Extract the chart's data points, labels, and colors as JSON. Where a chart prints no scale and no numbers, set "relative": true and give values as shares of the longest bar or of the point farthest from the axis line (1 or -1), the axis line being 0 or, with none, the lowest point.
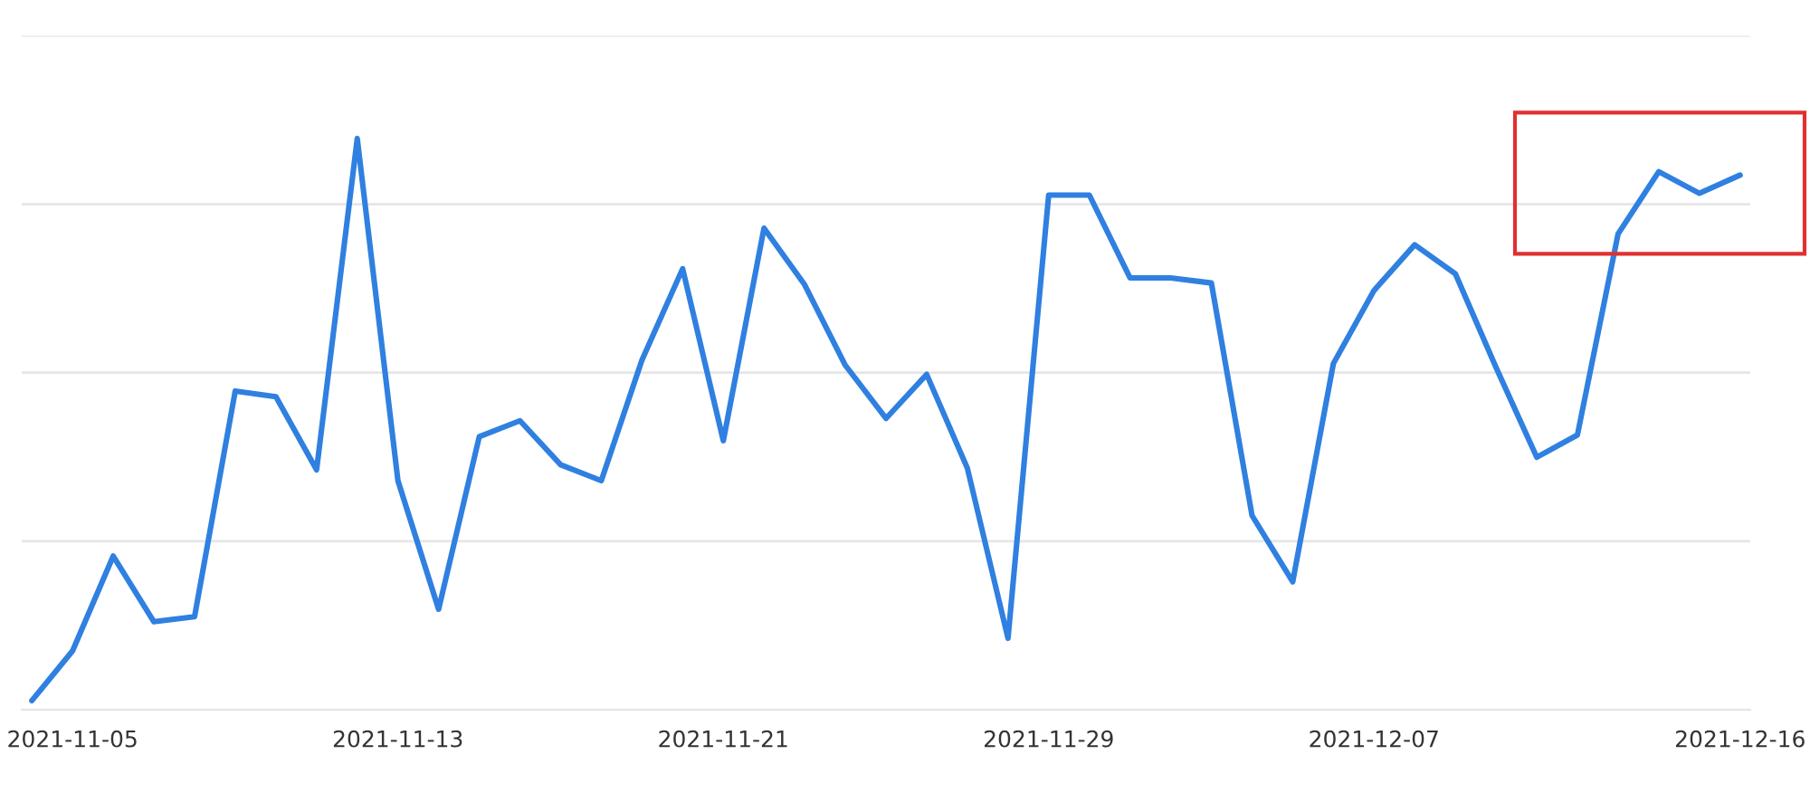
{
  "chart_data": {
    "type": "line",
    "relative": true,
    "grid": "y",
    "marker": "none",
    "line_style": "solid",
    "categories": [
      null,
      "2021-11-05",
      null,
      null,
      null,
      null,
      null,
      null,
      null,
      "2021-11-13",
      null,
      null,
      null,
      null,
      null,
      null,
      null,
      "2021-11-21",
      null,
      null,
      null,
      null,
      null,
      null,
      null,
      "2021-11-29",
      null,
      null,
      null,
      null,
      null,
      null,
      null,
      "2021-12-07",
      null,
      null,
      null,
      null,
      null,
      null,
      null,
      null,
      "2021-12-16"
    ],
    "series": [
      {
        "color": "#2f80e0",
        "values": [
          0.016,
          0.103,
          0.269,
          0.154,
          0.163,
          0.558,
          0.548,
          0.42,
          1,
          0.401,
          0.176,
          0.478,
          0.506,
          0.429,
          0.401,
          0.612,
          0.772,
          0.471,
          0.843,
          0.744,
          0.603,
          0.51,
          0.587,
          0.423,
          0.125,
          0.901,
          0.901,
          0.756,
          0.756,
          0.747,
          0.34,
          0.224,
          0.606,
          0.734,
          0.814,
          0.763,
          0.599,
          0.442,
          0.481,
          0.833,
          0.942,
          0.904,
          0.936
        ]
      }
    ]
  }
}
